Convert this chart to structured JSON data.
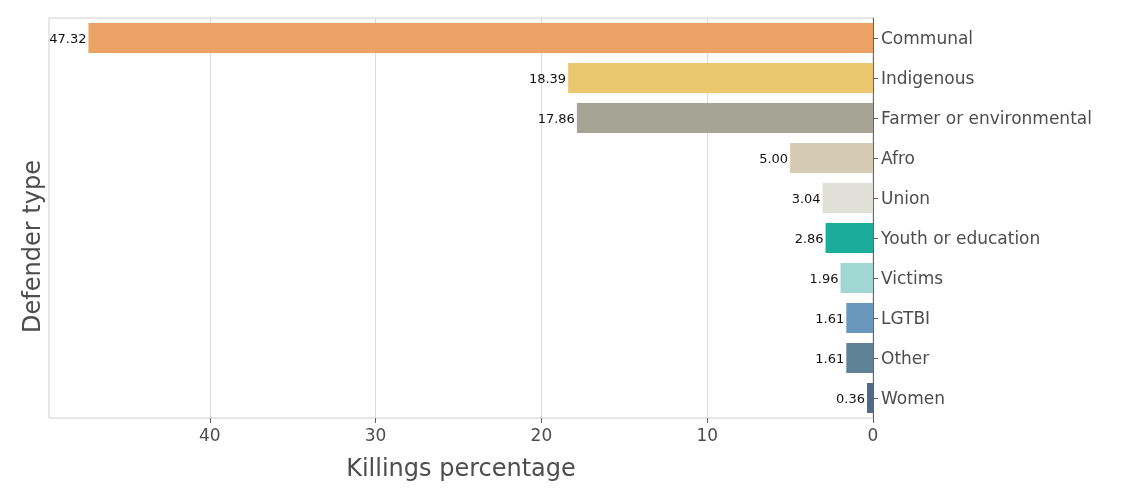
{
  "chart_data": {
    "type": "bar",
    "orientation": "horizontal",
    "xlabel": "Killings percentage",
    "ylabel": "Defender type",
    "categories": [
      "Communal",
      "Indigenous",
      "Farmer or environmental",
      "Afro",
      "Union",
      "Youth or education",
      "Victims",
      "LGTBI",
      "Other",
      "Women"
    ],
    "values": [
      47.32,
      18.39,
      17.86,
      5.0,
      3.04,
      2.86,
      1.96,
      1.61,
      1.61,
      0.36
    ],
    "value_labels": [
      "47.32",
      "18.39",
      "17.86",
      "5.00",
      "3.04",
      "2.86",
      "1.96",
      "1.61",
      "1.61",
      "0.36"
    ],
    "colors": [
      "#eca264",
      "#ebc870",
      "#a6a494",
      "#d5cbb5",
      "#e0e0d8",
      "#1cac9c",
      "#a0d7d3",
      "#6a97bc",
      "#5e8399",
      "#4f6b85"
    ],
    "xlim": [
      49.7,
      0
    ],
    "xticks": [
      40,
      30,
      20,
      10,
      0
    ],
    "grid": "x"
  }
}
